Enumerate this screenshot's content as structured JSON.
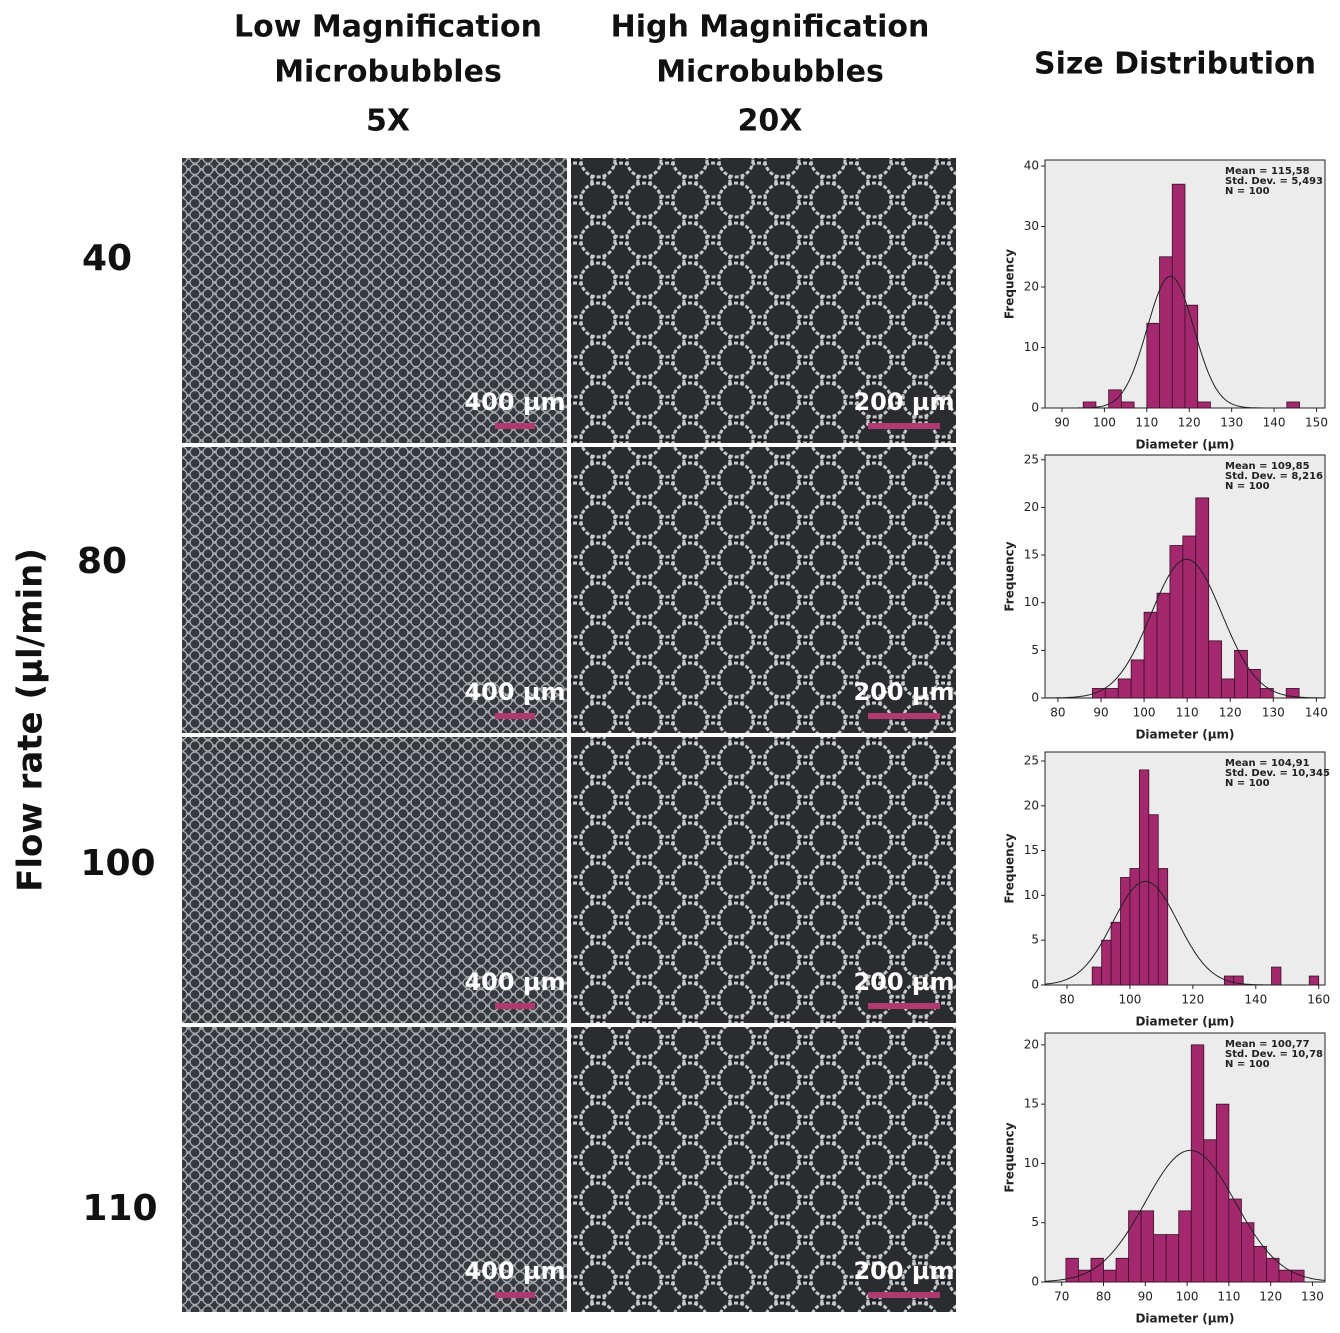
{
  "column_headers": [
    [
      "Low Magnification",
      "Microbubbles",
      "5X"
    ],
    [
      "High Magnification",
      "Microbubbles",
      "20X"
    ],
    [
      "Size Distribution"
    ]
  ],
  "row_axis_label": "Flow rate (µl/min)",
  "row_labels": [
    "40",
    "80",
    "100",
    "110"
  ],
  "scale_bars": [
    [
      "400 µm",
      "200 µm"
    ],
    [
      "400 µm",
      "200 µm"
    ],
    [
      "400 µm",
      "200 µm"
    ],
    [
      "400 µm",
      "200 µm"
    ]
  ],
  "chart_data": [
    {
      "type": "histogram",
      "xlabel": "Diameter (µm)",
      "ylabel": "Frequency",
      "color": "#a3286e",
      "bins": [
        95,
        98,
        101,
        104,
        107,
        110,
        113,
        116,
        119,
        122,
        125,
        128,
        131,
        134,
        137,
        140,
        143,
        146
      ],
      "values": [
        1,
        0,
        3,
        1,
        0,
        14,
        25,
        37,
        17,
        1,
        0,
        0,
        0,
        0,
        0,
        0,
        1
      ],
      "xlim": [
        86,
        152
      ],
      "xticks": [
        90,
        100,
        110,
        120,
        130,
        140,
        150
      ],
      "ylim": [
        0,
        41
      ],
      "yticks": [
        0,
        10,
        20,
        30,
        40
      ],
      "mean": {
        "value": 115.58,
        "label": "Mean = 115,58"
      },
      "std": {
        "value": 5.493,
        "label": "Std. Dev. = 5,493"
      },
      "n": {
        "value": 100,
        "label": "N = 100"
      }
    },
    {
      "type": "histogram",
      "xlabel": "Diameter (µm)",
      "ylabel": "Frequency",
      "color": "#a3286e",
      "bins": [
        88,
        91,
        94,
        97,
        100,
        103,
        106,
        109,
        112,
        115,
        118,
        121,
        124,
        127,
        130,
        133,
        136
      ],
      "values": [
        1,
        1,
        2,
        4,
        9,
        11,
        16,
        17,
        21,
        6,
        2,
        5,
        3,
        1,
        0,
        1
      ],
      "xlim": [
        77,
        142
      ],
      "xticks": [
        80,
        90,
        100,
        110,
        120,
        130,
        140
      ],
      "ylim": [
        0,
        25.5
      ],
      "yticks": [
        0,
        5,
        10,
        15,
        20,
        25
      ],
      "mean": {
        "value": 109.85,
        "label": "Mean = 109,85"
      },
      "std": {
        "value": 8.216,
        "label": "Std. Dev. = 8,216"
      },
      "n": {
        "value": 100,
        "label": "N = 100"
      }
    },
    {
      "type": "histogram",
      "xlabel": "Diameter (µm)",
      "ylabel": "Frequency",
      "color": "#a3286e",
      "bins": [
        88,
        91,
        94,
        97,
        100,
        103,
        106,
        109,
        112,
        115,
        118,
        121,
        124,
        127,
        130,
        133,
        136,
        139,
        142,
        145,
        148,
        151,
        154,
        157,
        160
      ],
      "values": [
        2,
        5,
        7,
        12,
        13,
        24,
        19,
        13,
        0,
        0,
        0,
        0,
        0,
        0,
        1,
        1,
        0,
        0,
        0,
        2,
        0,
        0,
        0,
        1
      ],
      "xlim": [
        73,
        162
      ],
      "xticks": [
        80,
        100,
        120,
        140,
        160
      ],
      "ylim": [
        0,
        26
      ],
      "yticks": [
        0,
        5,
        10,
        15,
        20,
        25
      ],
      "mean": {
        "value": 104.91,
        "label": "Mean = 104,91"
      },
      "std": {
        "value": 10.345,
        "label": "Std. Dev. = 10,345"
      },
      "n": {
        "value": 100,
        "label": "N = 100"
      }
    },
    {
      "type": "histogram",
      "xlabel": "Diameter (µm)",
      "ylabel": "Frequency",
      "color": "#a3286e",
      "bins": [
        71,
        74,
        77,
        80,
        83,
        86,
        89,
        92,
        95,
        98,
        101,
        104,
        107,
        110,
        113,
        116,
        119,
        122,
        125,
        128
      ],
      "values": [
        2,
        1,
        2,
        1,
        2,
        6,
        6,
        4,
        4,
        6,
        20,
        12,
        15,
        7,
        5,
        3,
        2,
        1,
        1
      ],
      "xlim": [
        66,
        133
      ],
      "xticks": [
        70,
        80,
        90,
        100,
        110,
        120,
        130
      ],
      "ylim": [
        0,
        21
      ],
      "yticks": [
        0,
        5,
        10,
        15,
        20
      ],
      "mean": {
        "value": 100.77,
        "label": "Mean = 100,77"
      },
      "std": {
        "value": 10.78,
        "label": "Std. Dev. = 10,78"
      },
      "n": {
        "value": 100,
        "label": "N = 100"
      }
    }
  ]
}
